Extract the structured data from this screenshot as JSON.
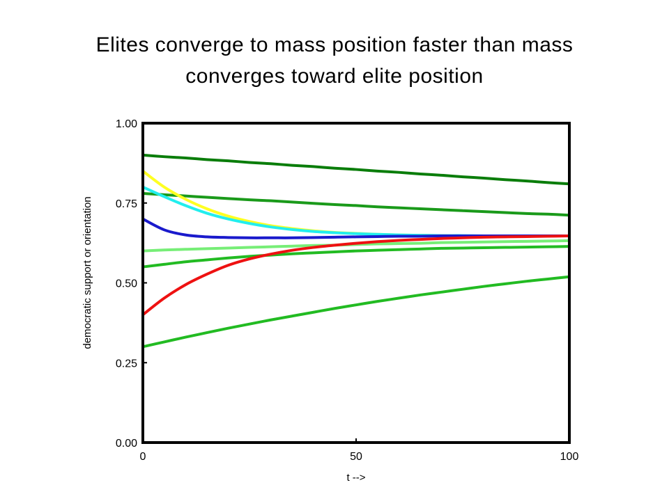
{
  "title_lines": [
    "Elites converge to mass position faster than mass",
    "converges toward elite position"
  ],
  "chart_data": {
    "type": "line",
    "title": "Elites converge to mass position faster than mass converges toward elite position",
    "xlabel": "t -->",
    "ylabel": "democratic support or orientation",
    "xlim": [
      0,
      100
    ],
    "ylim": [
      0,
      1
    ],
    "x_ticks": [
      0,
      50,
      100
    ],
    "x_tick_labels": [
      "0",
      "50",
      "100"
    ],
    "y_ticks": [
      0,
      0.25,
      0.5,
      0.75,
      1
    ],
    "y_tick_labels": [
      "0.00",
      "0.25",
      "0.50",
      "0.75",
      "1.00"
    ],
    "grid": false,
    "legend": "none",
    "x": [
      0,
      5,
      10,
      15,
      20,
      25,
      30,
      35,
      40,
      45,
      50,
      55,
      60,
      65,
      70,
      75,
      80,
      85,
      90,
      95,
      100
    ],
    "series": [
      {
        "color": "#0a7d0a",
        "values": [
          0.9,
          0.895,
          0.891,
          0.886,
          0.882,
          0.877,
          0.873,
          0.868,
          0.864,
          0.859,
          0.855,
          0.85,
          0.846,
          0.841,
          0.837,
          0.832,
          0.828,
          0.823,
          0.819,
          0.814,
          0.81
        ]
      },
      {
        "color": "#1a9a1a",
        "values": [
          0.78,
          0.776,
          0.772,
          0.768,
          0.764,
          0.76,
          0.757,
          0.753,
          0.749,
          0.745,
          0.742,
          0.738,
          0.735,
          0.732,
          0.729,
          0.726,
          0.723,
          0.72,
          0.717,
          0.715,
          0.712
        ]
      },
      {
        "color": "#ffff22",
        "values": [
          0.85,
          0.8,
          0.762,
          0.732,
          0.709,
          0.692,
          0.679,
          0.67,
          0.663,
          0.658,
          0.655,
          0.652,
          0.65,
          0.649,
          0.648,
          0.647,
          0.647,
          0.647,
          0.647,
          0.647,
          0.647
        ]
      },
      {
        "color": "#22eeee",
        "values": [
          0.8,
          0.77,
          0.742,
          0.718,
          0.7,
          0.686,
          0.675,
          0.667,
          0.661,
          0.657,
          0.654,
          0.652,
          0.65,
          0.649,
          0.648,
          0.648,
          0.647,
          0.647,
          0.647,
          0.647,
          0.647
        ]
      },
      {
        "color": "#1a1acc",
        "values": [
          0.7,
          0.666,
          0.65,
          0.644,
          0.642,
          0.641,
          0.641,
          0.641,
          0.642,
          0.643,
          0.644,
          0.645,
          0.646,
          0.646,
          0.647,
          0.647,
          0.647,
          0.647,
          0.647,
          0.647,
          0.647
        ]
      },
      {
        "color": "#77ee77",
        "values": [
          0.6,
          0.603,
          0.605,
          0.607,
          0.609,
          0.611,
          0.613,
          0.615,
          0.617,
          0.618,
          0.62,
          0.622,
          0.623,
          0.624,
          0.626,
          0.627,
          0.628,
          0.629,
          0.63,
          0.631,
          0.632
        ]
      },
      {
        "color": "#22bb22",
        "values": [
          0.55,
          0.558,
          0.566,
          0.572,
          0.578,
          0.583,
          0.587,
          0.591,
          0.594,
          0.597,
          0.6,
          0.602,
          0.604,
          0.606,
          0.608,
          0.609,
          0.61,
          0.611,
          0.612,
          0.613,
          0.614
        ]
      },
      {
        "color": "#22bb22",
        "values": [
          0.3,
          0.315,
          0.33,
          0.344,
          0.358,
          0.371,
          0.384,
          0.396,
          0.408,
          0.42,
          0.431,
          0.442,
          0.452,
          0.462,
          0.471,
          0.48,
          0.489,
          0.497,
          0.505,
          0.512,
          0.519
        ]
      },
      {
        "color": "#ee1111",
        "values": [
          0.4,
          0.452,
          0.494,
          0.527,
          0.555,
          0.575,
          0.59,
          0.602,
          0.611,
          0.618,
          0.624,
          0.629,
          0.633,
          0.636,
          0.639,
          0.641,
          0.643,
          0.644,
          0.645,
          0.646,
          0.647
        ]
      }
    ]
  }
}
